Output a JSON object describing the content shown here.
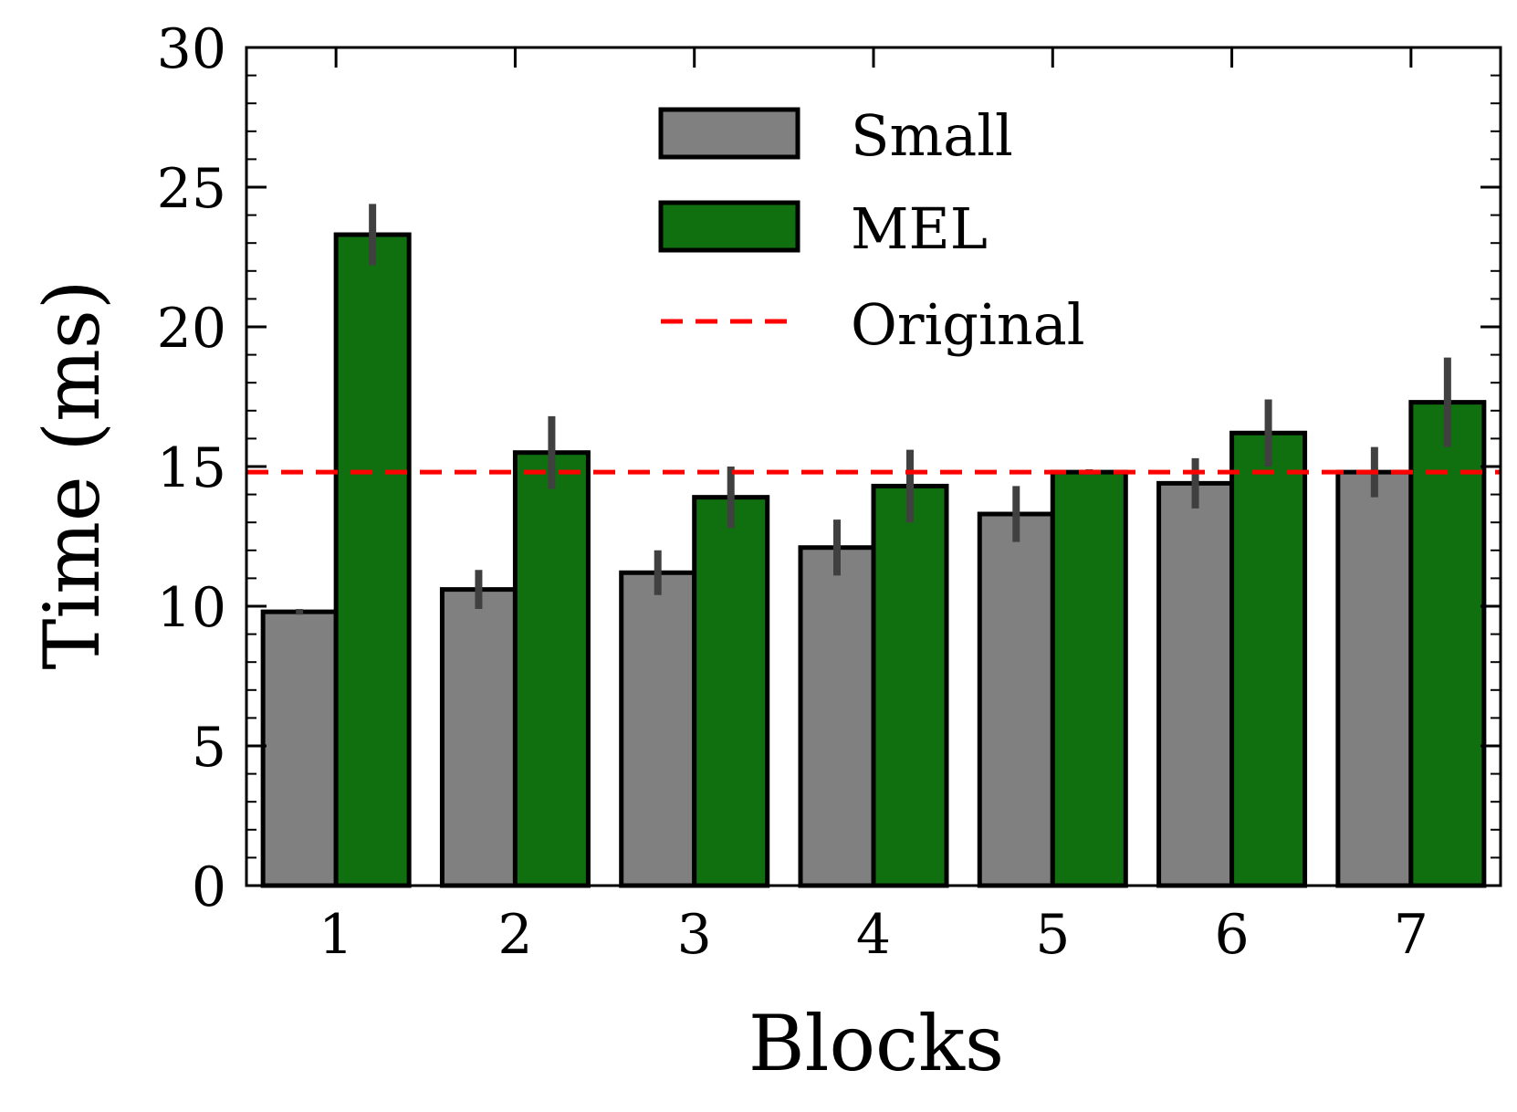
{
  "chart_data": {
    "type": "bar",
    "title": "",
    "xlabel": "Blocks",
    "ylabel": "Time (ms)",
    "categories": [
      "1",
      "2",
      "3",
      "4",
      "5",
      "6",
      "7"
    ],
    "ylim": [
      0,
      30
    ],
    "yticks": [
      0,
      5,
      10,
      15,
      20,
      25,
      30
    ],
    "yticks_minor_step": 1,
    "series": [
      {
        "name": "Small",
        "color": "#808080",
        "values": [
          9.8,
          10.6,
          11.2,
          12.1,
          13.3,
          14.4,
          14.8
        ],
        "errors": [
          0.1,
          0.7,
          0.8,
          1.0,
          1.0,
          0.9,
          0.9
        ]
      },
      {
        "name": "MEL",
        "color": "#107010",
        "values": [
          23.3,
          15.5,
          13.9,
          14.3,
          14.8,
          16.2,
          17.3
        ],
        "errors": [
          1.1,
          1.3,
          1.1,
          1.3,
          0.1,
          1.2,
          1.6
        ]
      }
    ],
    "reference_line": {
      "name": "Original",
      "value": 14.8,
      "color": "#ff0000",
      "style": "dashed"
    },
    "legend": {
      "position": "top-center",
      "entries": [
        "Small",
        "MEL",
        "Original"
      ]
    },
    "grid": false,
    "errorbar_color": "#404040",
    "bar_edge_color": "#000000"
  }
}
